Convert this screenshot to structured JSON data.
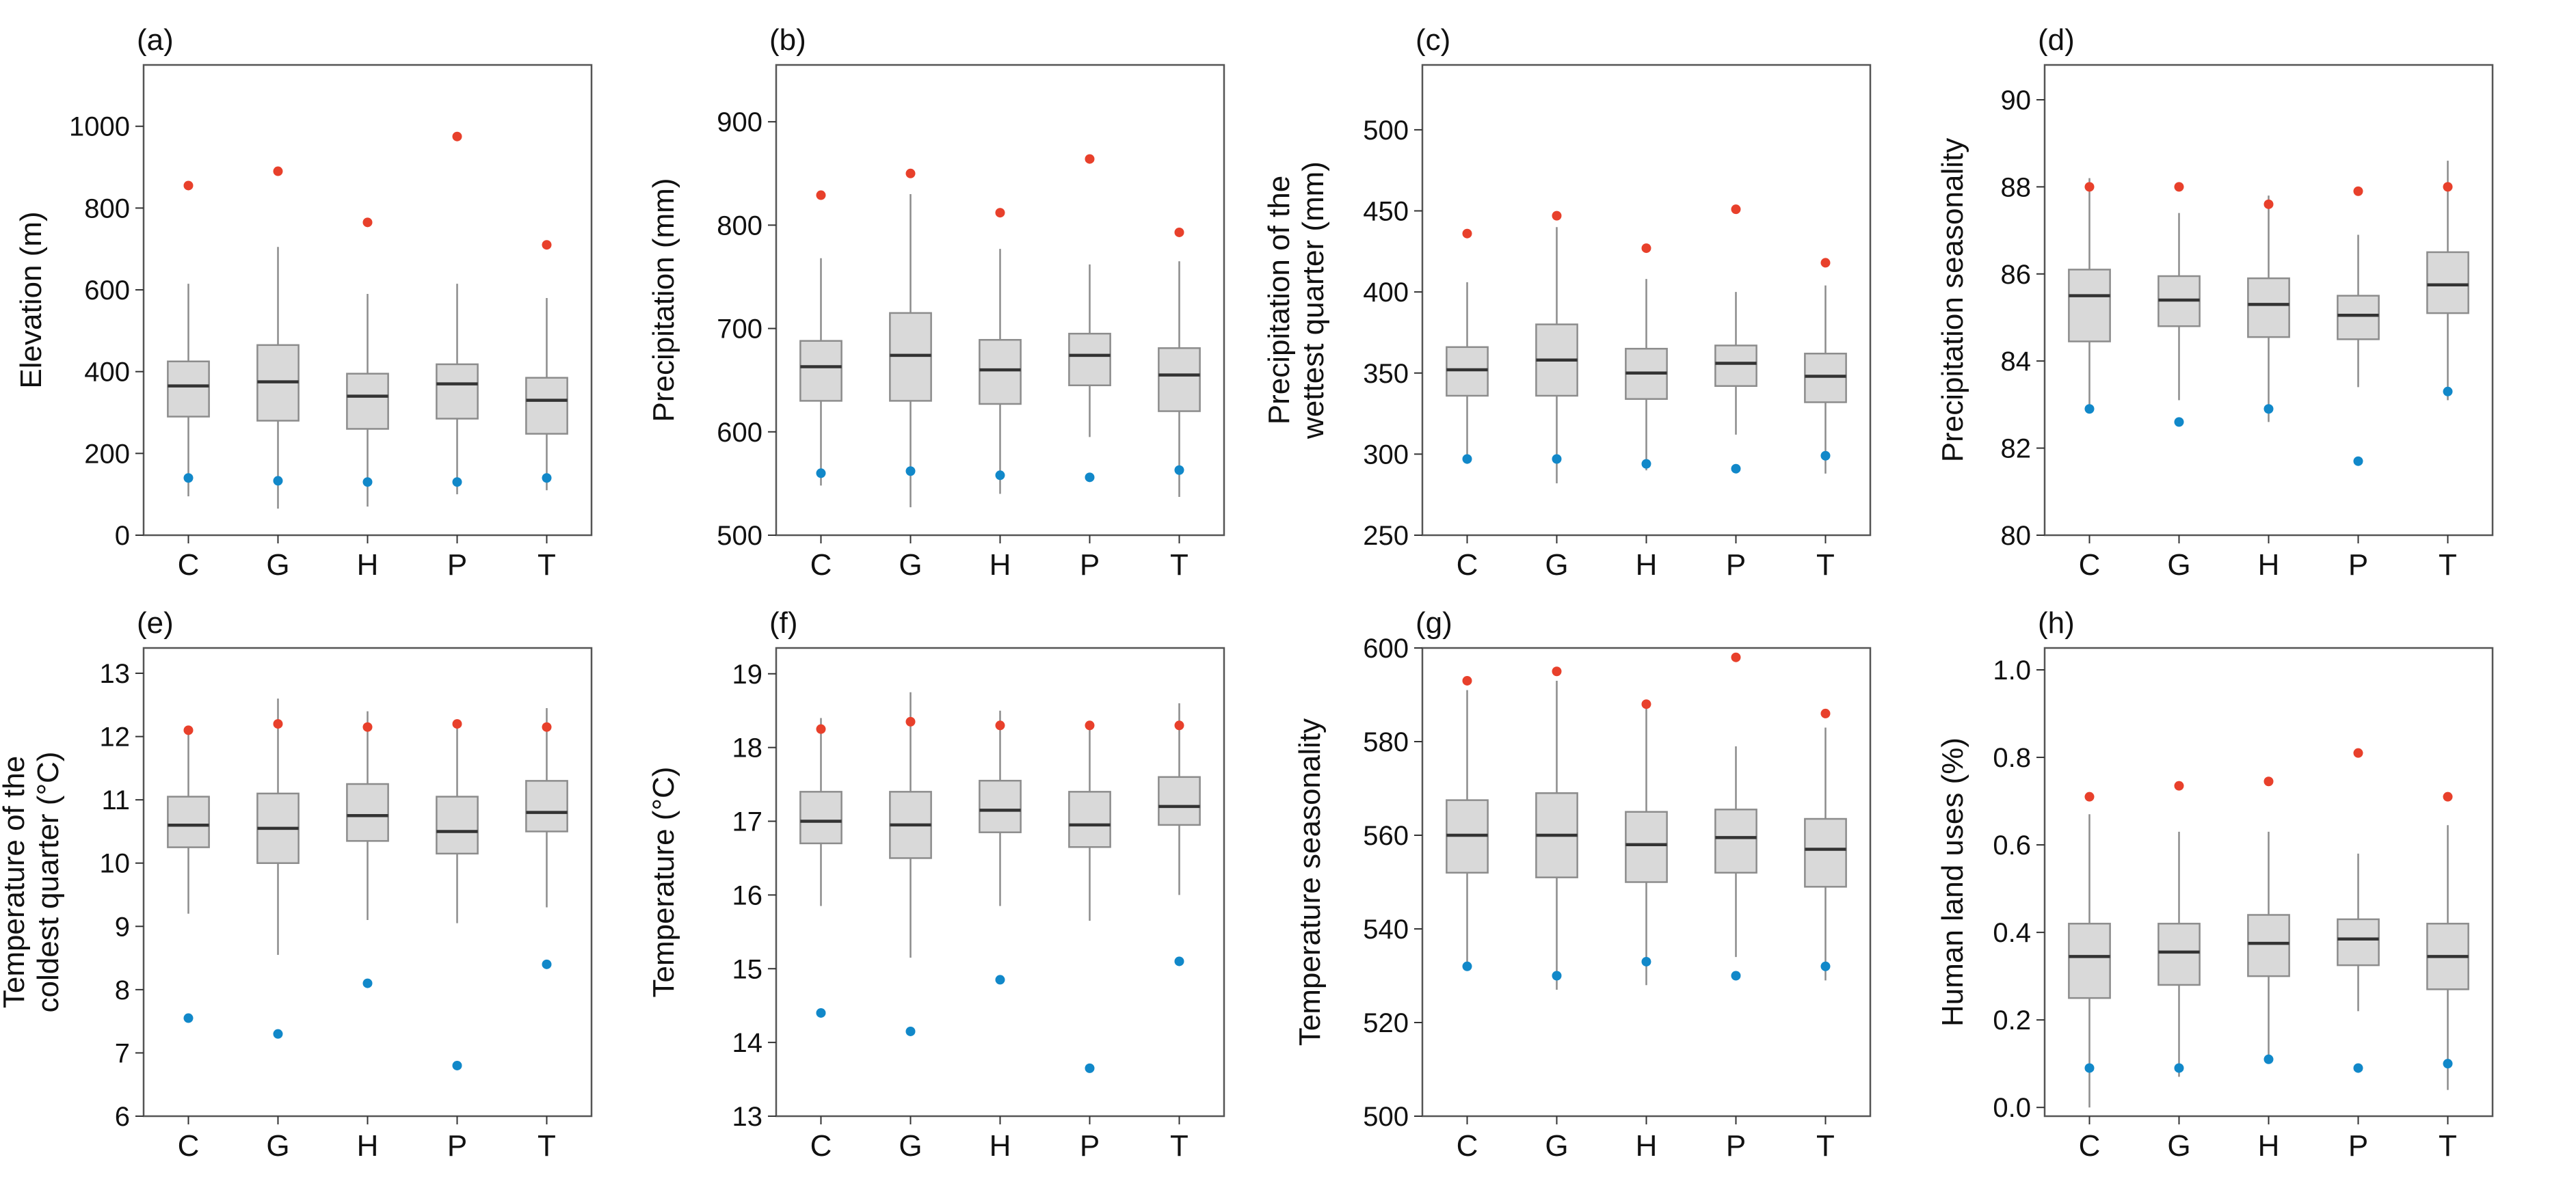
{
  "chart_data": [
    {
      "type": "box",
      "panel_label": "(a)",
      "ylabel": [
        "Elevation (m)"
      ],
      "categories": [
        "C",
        "G",
        "H",
        "P",
        "T"
      ],
      "ylim": [
        0,
        1150
      ],
      "yticks": [
        0,
        200,
        400,
        600,
        800,
        1000
      ],
      "boxes": [
        {
          "q1": 290,
          "median": 365,
          "q3": 425,
          "whisker_low": 95,
          "whisker_high": 615
        },
        {
          "q1": 280,
          "median": 375,
          "q3": 465,
          "whisker_low": 65,
          "whisker_high": 705
        },
        {
          "q1": 260,
          "median": 340,
          "q3": 395,
          "whisker_low": 70,
          "whisker_high": 590
        },
        {
          "q1": 285,
          "median": 370,
          "q3": 418,
          "whisker_low": 100,
          "whisker_high": 615
        },
        {
          "q1": 248,
          "median": 330,
          "q3": 385,
          "whisker_low": 110,
          "whisker_high": 580
        }
      ],
      "upper_points": [
        855,
        890,
        765,
        975,
        710
      ],
      "lower_points": [
        140,
        133,
        130,
        130,
        140
      ]
    },
    {
      "type": "box",
      "panel_label": "(b)",
      "ylabel": [
        "Precipitation (mm)"
      ],
      "categories": [
        "C",
        "G",
        "H",
        "P",
        "T"
      ],
      "ylim": [
        500,
        955
      ],
      "yticks": [
        500,
        600,
        700,
        800,
        900
      ],
      "boxes": [
        {
          "q1": 630,
          "median": 663,
          "q3": 688,
          "whisker_low": 548,
          "whisker_high": 768
        },
        {
          "q1": 630,
          "median": 674,
          "q3": 715,
          "whisker_low": 527,
          "whisker_high": 830
        },
        {
          "q1": 627,
          "median": 660,
          "q3": 689,
          "whisker_low": 540,
          "whisker_high": 777
        },
        {
          "q1": 645,
          "median": 674,
          "q3": 695,
          "whisker_low": 595,
          "whisker_high": 762
        },
        {
          "q1": 620,
          "median": 655,
          "q3": 681,
          "whisker_low": 537,
          "whisker_high": 765
        }
      ],
      "upper_points": [
        829,
        850,
        812,
        864,
        793
      ],
      "lower_points": [
        560,
        562,
        558,
        556,
        563
      ]
    },
    {
      "type": "box",
      "panel_label": "(c)",
      "ylabel": [
        "Precipitation of the",
        "wettest quarter (mm)"
      ],
      "categories": [
        "C",
        "G",
        "H",
        "P",
        "T"
      ],
      "ylim": [
        250,
        540
      ],
      "yticks": [
        250,
        300,
        350,
        400,
        450,
        500
      ],
      "boxes": [
        {
          "q1": 336,
          "median": 352,
          "q3": 366,
          "whisker_low": 294,
          "whisker_high": 406
        },
        {
          "q1": 336,
          "median": 358,
          "q3": 380,
          "whisker_low": 282,
          "whisker_high": 440
        },
        {
          "q1": 334,
          "median": 350,
          "q3": 365,
          "whisker_low": 290,
          "whisker_high": 408
        },
        {
          "q1": 342,
          "median": 356,
          "q3": 367,
          "whisker_low": 312,
          "whisker_high": 400
        },
        {
          "q1": 332,
          "median": 348,
          "q3": 362,
          "whisker_low": 288,
          "whisker_high": 404
        }
      ],
      "upper_points": [
        436,
        447,
        427,
        451,
        418
      ],
      "lower_points": [
        297,
        297,
        294,
        291,
        299
      ]
    },
    {
      "type": "box",
      "panel_label": "(d)",
      "ylabel": [
        "Precipitation seasonality"
      ],
      "categories": [
        "C",
        "G",
        "H",
        "P",
        "T"
      ],
      "ylim": [
        80,
        90.8
      ],
      "yticks": [
        80,
        82,
        84,
        86,
        88,
        90
      ],
      "boxes": [
        {
          "q1": 84.45,
          "median": 85.5,
          "q3": 86.1,
          "whisker_low": 82.8,
          "whisker_high": 88.2
        },
        {
          "q1": 84.8,
          "median": 85.4,
          "q3": 85.95,
          "whisker_low": 83.1,
          "whisker_high": 87.4
        },
        {
          "q1": 84.55,
          "median": 85.3,
          "q3": 85.9,
          "whisker_low": 82.6,
          "whisker_high": 87.8
        },
        {
          "q1": 84.5,
          "median": 85.05,
          "q3": 85.5,
          "whisker_low": 83.4,
          "whisker_high": 86.9
        },
        {
          "q1": 85.1,
          "median": 85.75,
          "q3": 86.5,
          "whisker_low": 83.1,
          "whisker_high": 88.6
        }
      ],
      "upper_points": [
        88.0,
        88.0,
        87.6,
        87.9,
        88.0
      ],
      "lower_points": [
        82.9,
        82.6,
        82.9,
        81.7,
        83.3
      ]
    },
    {
      "type": "box",
      "panel_label": "(e)",
      "ylabel": [
        "Temperature of the",
        "coldest quarter (°C)"
      ],
      "categories": [
        "C",
        "G",
        "H",
        "P",
        "T"
      ],
      "ylim": [
        6,
        13.4
      ],
      "yticks": [
        6,
        7,
        8,
        9,
        10,
        11,
        12,
        13
      ],
      "boxes": [
        {
          "q1": 10.25,
          "median": 10.6,
          "q3": 11.05,
          "whisker_low": 9.2,
          "whisker_high": 12.1
        },
        {
          "q1": 10.0,
          "median": 10.55,
          "q3": 11.1,
          "whisker_low": 8.55,
          "whisker_high": 12.6
        },
        {
          "q1": 10.35,
          "median": 10.75,
          "q3": 11.25,
          "whisker_low": 9.1,
          "whisker_high": 12.4
        },
        {
          "q1": 10.15,
          "median": 10.5,
          "q3": 11.05,
          "whisker_low": 9.05,
          "whisker_high": 12.15
        },
        {
          "q1": 10.5,
          "median": 10.8,
          "q3": 11.3,
          "whisker_low": 9.3,
          "whisker_high": 12.45
        }
      ],
      "upper_points": [
        12.1,
        12.2,
        12.15,
        12.2,
        12.15
      ],
      "lower_points": [
        7.55,
        7.3,
        8.1,
        6.8,
        8.4
      ]
    },
    {
      "type": "box",
      "panel_label": "(f)",
      "ylabel": [
        "Temperature (°C)"
      ],
      "categories": [
        "C",
        "G",
        "H",
        "P",
        "T"
      ],
      "ylim": [
        13,
        19.35
      ],
      "yticks": [
        13,
        14,
        15,
        16,
        17,
        18,
        19
      ],
      "boxes": [
        {
          "q1": 16.7,
          "median": 17.0,
          "q3": 17.4,
          "whisker_low": 15.85,
          "whisker_high": 18.4
        },
        {
          "q1": 16.5,
          "median": 16.95,
          "q3": 17.4,
          "whisker_low": 15.15,
          "whisker_high": 18.75
        },
        {
          "q1": 16.85,
          "median": 17.15,
          "q3": 17.55,
          "whisker_low": 15.85,
          "whisker_high": 18.5
        },
        {
          "q1": 16.65,
          "median": 16.95,
          "q3": 17.4,
          "whisker_low": 15.65,
          "whisker_high": 18.25
        },
        {
          "q1": 16.95,
          "median": 17.2,
          "q3": 17.6,
          "whisker_low": 16.0,
          "whisker_high": 18.6
        }
      ],
      "upper_points": [
        18.25,
        18.35,
        18.3,
        18.3,
        18.3
      ],
      "lower_points": [
        14.4,
        14.15,
        14.85,
        13.65,
        15.1
      ]
    },
    {
      "type": "box",
      "panel_label": "(g)",
      "ylabel": [
        "Temperature seasonality"
      ],
      "categories": [
        "C",
        "G",
        "H",
        "P",
        "T"
      ],
      "ylim": [
        500,
        600
      ],
      "yticks": [
        500,
        520,
        540,
        560,
        580,
        600
      ],
      "boxes": [
        {
          "q1": 552,
          "median": 560,
          "q3": 567.5,
          "whisker_low": 533,
          "whisker_high": 591
        },
        {
          "q1": 551,
          "median": 560,
          "q3": 569,
          "whisker_low": 527,
          "whisker_high": 593
        },
        {
          "q1": 550,
          "median": 558,
          "q3": 565,
          "whisker_low": 528,
          "whisker_high": 588
        },
        {
          "q1": 552,
          "median": 559.5,
          "q3": 565.5,
          "whisker_low": 534,
          "whisker_high": 579
        },
        {
          "q1": 549,
          "median": 557,
          "q3": 563.5,
          "whisker_low": 529,
          "whisker_high": 583
        }
      ],
      "upper_points": [
        593,
        595,
        588,
        598,
        586
      ],
      "lower_points": [
        532,
        530,
        533,
        530,
        532
      ]
    },
    {
      "type": "box",
      "panel_label": "(h)",
      "ylabel": [
        "Human land uses (%)"
      ],
      "categories": [
        "C",
        "G",
        "H",
        "P",
        "T"
      ],
      "ylim": [
        -0.02,
        1.05
      ],
      "yticks": [
        "0.0",
        "0.2",
        "0.4",
        "0.6",
        "0.8",
        "1.0"
      ],
      "boxes": [
        {
          "q1": 0.25,
          "median": 0.345,
          "q3": 0.42,
          "whisker_low": 0.0,
          "whisker_high": 0.67
        },
        {
          "q1": 0.28,
          "median": 0.355,
          "q3": 0.42,
          "whisker_low": 0.07,
          "whisker_high": 0.63
        },
        {
          "q1": 0.3,
          "median": 0.375,
          "q3": 0.44,
          "whisker_low": 0.1,
          "whisker_high": 0.63
        },
        {
          "q1": 0.325,
          "median": 0.385,
          "q3": 0.43,
          "whisker_low": 0.22,
          "whisker_high": 0.58
        },
        {
          "q1": 0.27,
          "median": 0.345,
          "q3": 0.42,
          "whisker_low": 0.04,
          "whisker_high": 0.645
        }
      ],
      "upper_points": [
        0.71,
        0.735,
        0.745,
        0.81,
        0.71
      ],
      "lower_points": [
        0.09,
        0.09,
        0.11,
        0.09,
        0.1
      ]
    }
  ],
  "colors": {
    "box_fill": "#d9d9d9",
    "box_edge": "#8c8c8c",
    "median": "#333333",
    "upper_point": "#e8402b",
    "lower_point": "#1188c9",
    "frame": "#555555"
  }
}
